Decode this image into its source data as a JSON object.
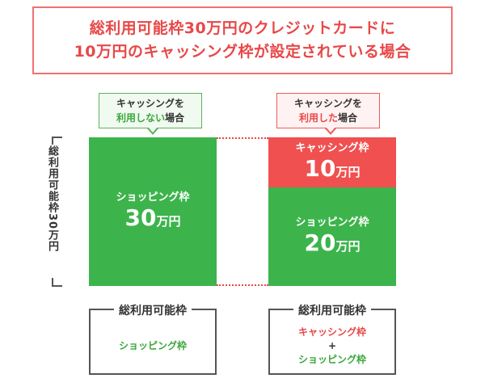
{
  "title": {
    "line1": "総利用可能枠30万円のクレジットカードに",
    "line2": "10万円のキャッシング枠が設定されている場合"
  },
  "callouts": {
    "not_used": {
      "line1": "キャッシングを",
      "line2_highlight": "利用しない",
      "line2_rest": "場合"
    },
    "used": {
      "line1": "キャッシングを",
      "line2_highlight": "利用した",
      "line2_rest": "場合"
    }
  },
  "total_limit_label": "総利用可能枠30万円",
  "left_bar": {
    "label": "ショッピング枠",
    "amount": "30",
    "unit": "万円"
  },
  "right_bar": {
    "cashing": {
      "label": "キャッシング枠",
      "amount": "10",
      "unit": "万円"
    },
    "shopping": {
      "label": "ショッピング枠",
      "amount": "20",
      "unit": "万円"
    }
  },
  "summary_left": {
    "title": "総利用可能枠",
    "content": "ショッピング枠"
  },
  "summary_right": {
    "title": "総利用可能枠",
    "line1": "キャッシング枠",
    "plus": "+",
    "line2": "ショッピング枠"
  },
  "colors": {
    "green": "#3cb44b",
    "red": "#f05050",
    "title_red": "#e84848"
  }
}
